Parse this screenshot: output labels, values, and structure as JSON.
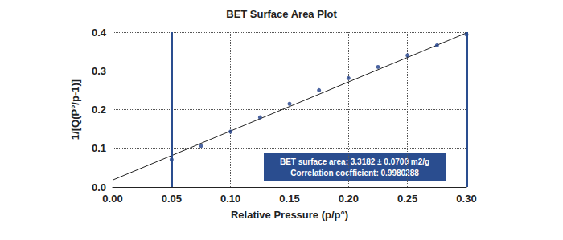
{
  "chart_data": {
    "type": "scatter",
    "title": "BET Surface Area Plot",
    "x_label": "Relative Pressure (p/p°)",
    "y_label": "1/[Q(P°/p-1)]",
    "x": [
      0.05,
      0.075,
      0.1,
      0.125,
      0.15,
      0.175,
      0.2,
      0.225,
      0.25,
      0.275,
      0.3
    ],
    "values": [
      0.071,
      0.106,
      0.143,
      0.18,
      0.215,
      0.25,
      0.281,
      0.31,
      0.34,
      0.366,
      0.394
    ],
    "color": "#1f3f8a",
    "marker": "circle",
    "fit_line": {
      "x": [
        0,
        0.3
      ],
      "values": [
        0.018,
        0.398
      ]
    },
    "selected_range": [
      0.047,
      0.3
    ],
    "annotation": [
      "BET surface area: 3.3182 ± 0.0700 m2/g",
      "Correlation coefficient: 0.9980288"
    ],
    "xlim": [
      0,
      0.3
    ],
    "xticks": [
      {
        "value": 0,
        "label": "0.00"
      },
      {
        "value": 0.05,
        "label": "0.05"
      },
      {
        "value": 0.1,
        "label": "0.10"
      },
      {
        "value": 0.15,
        "label": "0.15"
      },
      {
        "value": 0.2,
        "label": "0.20"
      },
      {
        "value": 0.25,
        "label": "0.25"
      },
      {
        "value": 0.3,
        "label": "0.30"
      }
    ],
    "ylim": [
      0,
      0.4
    ],
    "yticks": [
      {
        "value": 0,
        "label": "0.0"
      },
      {
        "value": 0.1,
        "label": "0.1"
      },
      {
        "value": 0.2,
        "label": "0.2"
      },
      {
        "value": 0.3,
        "label": "0.3"
      },
      {
        "value": 0.4,
        "label": "0.4"
      }
    ],
    "grid": true
  }
}
